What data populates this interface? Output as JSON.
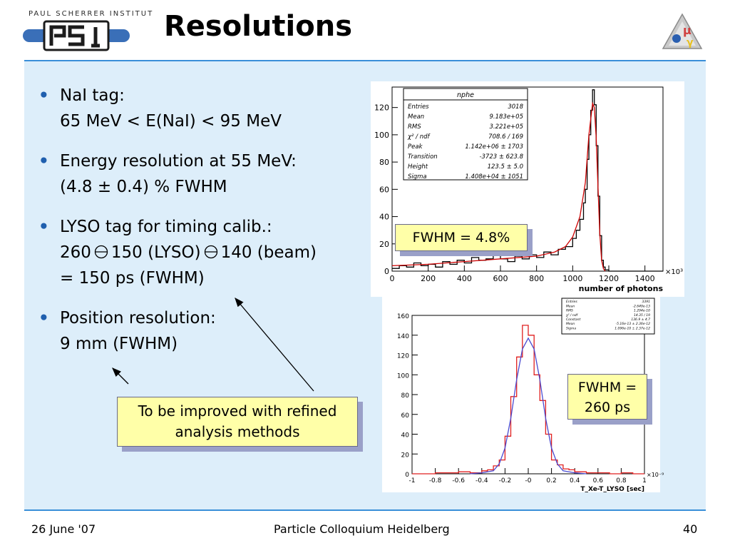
{
  "header": {
    "institute": "PAUL SCHERRER INSTITUT",
    "logo_text": "PSI",
    "title": "Resolutions"
  },
  "bullets": [
    {
      "lines": [
        "NaI tag:",
        "65 MeV < E(NaI) < 95 MeV"
      ]
    },
    {
      "lines": [
        "Energy resolution at 55 MeV:",
        "(4.8 ± 0.4) % FWHM"
      ]
    },
    {
      "lines": [
        "LYSO tag for timing calib.:",
        "= 150 ps (FWHM)"
      ],
      "timing_parts": [
        "260",
        "150 (LYSO)",
        "140 (beam)"
      ]
    },
    {
      "lines": [
        "Position resolution:",
        "9 mm (FWHM)"
      ]
    }
  ],
  "notes": {
    "fwhm_energy": "FWHM = 4.8%",
    "fwhm_timing": [
      "FWHM =",
      "260 ps"
    ],
    "improved": [
      "To be improved with refined",
      "analysis methods"
    ]
  },
  "footer": {
    "date": "26 June '07",
    "event": "Particle Colloquium Heidelberg",
    "page": "40"
  },
  "colors": {
    "accent_line": "#3a8fd8",
    "content_bg": "#ddeefa",
    "bullet": "#1f5fae",
    "note_bg": "#ffffa8",
    "hist_line": "#000000",
    "fit_line": "#cc0000",
    "hist2_line": "#e02020",
    "fit2_line": "#4a4ad0"
  },
  "chart_data": [
    {
      "type": "line",
      "title": "nphe",
      "xlabel": "number of photons",
      "x_multiplier": "×10³",
      "xlim": [
        0,
        1500
      ],
      "ylim": [
        0,
        135
      ],
      "x_ticks": [
        "0",
        "200",
        "400",
        "600",
        "800",
        "1000",
        "1200",
        "1400"
      ],
      "x_tick_values": [
        0,
        200,
        400,
        600,
        800,
        1000,
        1200,
        1400
      ],
      "y_ticks": [
        "0",
        "20",
        "40",
        "60",
        "80",
        "100",
        "120"
      ],
      "y_tick_values": [
        0,
        20,
        40,
        60,
        80,
        100,
        120
      ],
      "stats": [
        [
          "Entries",
          "3018"
        ],
        [
          "Mean",
          "9.183e+05"
        ],
        [
          "RMS",
          "3.221e+05"
        ],
        [
          "χ² / ndf",
          "708.6 / 169"
        ],
        [
          "Peak",
          "1.142e+06 ± 1703"
        ],
        [
          "Transition",
          "-3723 ± 623.8"
        ],
        [
          "Height",
          "123.5 ± 5.0"
        ],
        [
          "Sigma",
          "1.408e+04 ± 1051"
        ]
      ],
      "series": [
        {
          "x": [
            0,
            40,
            80,
            120,
            160,
            200,
            240,
            280,
            320,
            360,
            400,
            440,
            480,
            520,
            560,
            600,
            640,
            680,
            720,
            760,
            800,
            840,
            880,
            920,
            960,
            1000,
            1020,
            1040,
            1060,
            1070,
            1080,
            1090,
            1100,
            1110,
            1120,
            1130,
            1140,
            1150,
            1160,
            1170,
            1180,
            1200,
            1240,
            1300,
            1400,
            1500
          ],
          "values": [
            2,
            4,
            3,
            6,
            4,
            5,
            3,
            7,
            5,
            8,
            6,
            10,
            8,
            9,
            12,
            9,
            7,
            11,
            9,
            12,
            10,
            14,
            12,
            16,
            18,
            24,
            30,
            38,
            50,
            60,
            82,
            100,
            118,
            133,
            122,
            92,
            55,
            26,
            8,
            3,
            1,
            0,
            0,
            0,
            0,
            0
          ]
        },
        {
          "x": [
            0,
            200,
            400,
            600,
            800,
            900,
            960,
            1000,
            1040,
            1070,
            1090,
            1110,
            1120,
            1130,
            1140,
            1150,
            1160,
            1170,
            1180
          ],
          "values": [
            4,
            5,
            7,
            9,
            11,
            14,
            18,
            25,
            40,
            65,
            100,
            123,
            120,
            98,
            62,
            28,
            8,
            2,
            0
          ]
        }
      ]
    },
    {
      "type": "line",
      "xlabel": "T_Xe-T_LYSO [sec]",
      "x_multiplier": "×10⁻⁹",
      "xlim": [
        -1,
        1
      ],
      "ylim": [
        0,
        160
      ],
      "x_ticks": [
        "-1",
        "-0.8",
        "-0.6",
        "-0.4",
        "-0.2",
        "-0",
        "0.2",
        "0.4",
        "0.6",
        "0.8",
        "1"
      ],
      "x_tick_values": [
        -1,
        -0.8,
        -0.6,
        -0.4,
        -0.2,
        0,
        0.2,
        0.4,
        0.6,
        0.8,
        1
      ],
      "y_ticks": [
        "0",
        "20",
        "40",
        "60",
        "80",
        "100",
        "120",
        "140",
        "160"
      ],
      "y_tick_values": [
        0,
        20,
        40,
        60,
        80,
        100,
        120,
        140,
        160
      ],
      "stats": [
        [
          "Entries",
          "3391"
        ],
        [
          "Mean",
          "-2.649e-13"
        ],
        [
          "RMS",
          "1.294e-10"
        ],
        [
          "χ² / ndf",
          "14.35 / 19"
        ],
        [
          "Constant",
          "136.9 ± 4.7"
        ],
        [
          "Mean",
          "-5.16e-13 ± 2.36e-12"
        ],
        [
          "Sigma",
          "1.096e-10 ± 2.37e-12"
        ]
      ],
      "series": [
        {
          "x": [
            -1,
            -0.9,
            -0.8,
            -0.7,
            -0.6,
            -0.5,
            -0.4,
            -0.35,
            -0.3,
            -0.25,
            -0.2,
            -0.15,
            -0.1,
            -0.05,
            0,
            0.05,
            0.1,
            0.15,
            0.2,
            0.25,
            0.3,
            0.35,
            0.4,
            0.5,
            0.6,
            0.7,
            0.8,
            0.9,
            1
          ],
          "values": [
            0,
            0,
            1,
            1,
            2,
            1,
            3,
            4,
            8,
            14,
            38,
            78,
            118,
            150,
            140,
            100,
            74,
            40,
            14,
            9,
            5,
            4,
            2,
            1,
            1,
            0,
            1,
            0,
            0
          ]
        },
        {
          "x": [
            -0.5,
            -0.4,
            -0.3,
            -0.25,
            -0.2,
            -0.15,
            -0.1,
            -0.05,
            0,
            0.05,
            0.1,
            0.15,
            0.2,
            0.25,
            0.3,
            0.4,
            0.5
          ],
          "values": [
            0,
            1,
            3,
            10,
            26,
            56,
            95,
            126,
            137,
            126,
            95,
            56,
            26,
            10,
            3,
            1,
            0
          ]
        }
      ]
    }
  ]
}
